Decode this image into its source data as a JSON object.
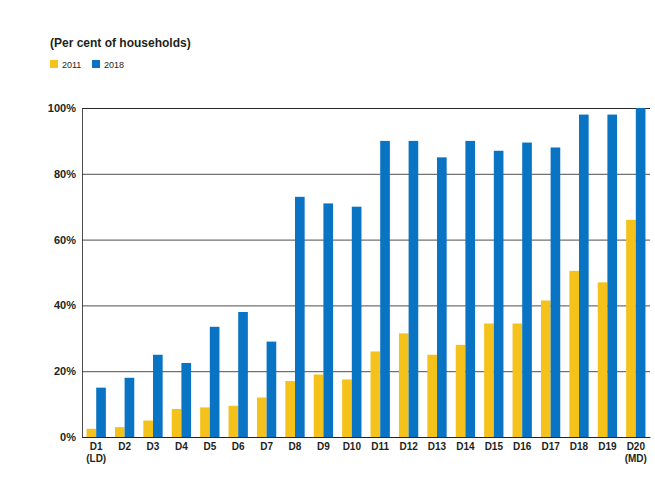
{
  "chart_data": {
    "type": "bar",
    "title": "(Per cent of households)",
    "categories": [
      "D1 (LD)",
      "D2",
      "D3",
      "D4",
      "D5",
      "D6",
      "D7",
      "D8",
      "D9",
      "D10",
      "D11",
      "D12",
      "D13",
      "D14",
      "D15",
      "D16",
      "D17",
      "D18",
      "D19",
      "D20 (MD)"
    ],
    "series": [
      {
        "name": "2011",
        "color": "#f5c21b",
        "values": [
          2.5,
          3,
          5,
          8.5,
          9,
          9.5,
          12,
          17,
          19,
          17.5,
          26,
          31.5,
          25,
          28,
          34.5,
          34.5,
          41.5,
          50.5,
          47,
          66
        ]
      },
      {
        "name": "2018",
        "color": "#0a74c4",
        "values": [
          15,
          18,
          25,
          22.5,
          33.5,
          38,
          29,
          73,
          71,
          70,
          90,
          90,
          85,
          90,
          87,
          89.5,
          88,
          98,
          98,
          100
        ]
      }
    ],
    "ylim": [
      0,
      100
    ],
    "yticks": [
      {
        "value": 0,
        "label": "0%"
      },
      {
        "value": 20,
        "label": "20%"
      },
      {
        "value": 40,
        "label": "40%"
      },
      {
        "value": 60,
        "label": "60%"
      },
      {
        "value": 80,
        "label": "80%"
      },
      {
        "value": 100,
        "label": "100%"
      }
    ],
    "grid": true,
    "legend": "top-left"
  }
}
